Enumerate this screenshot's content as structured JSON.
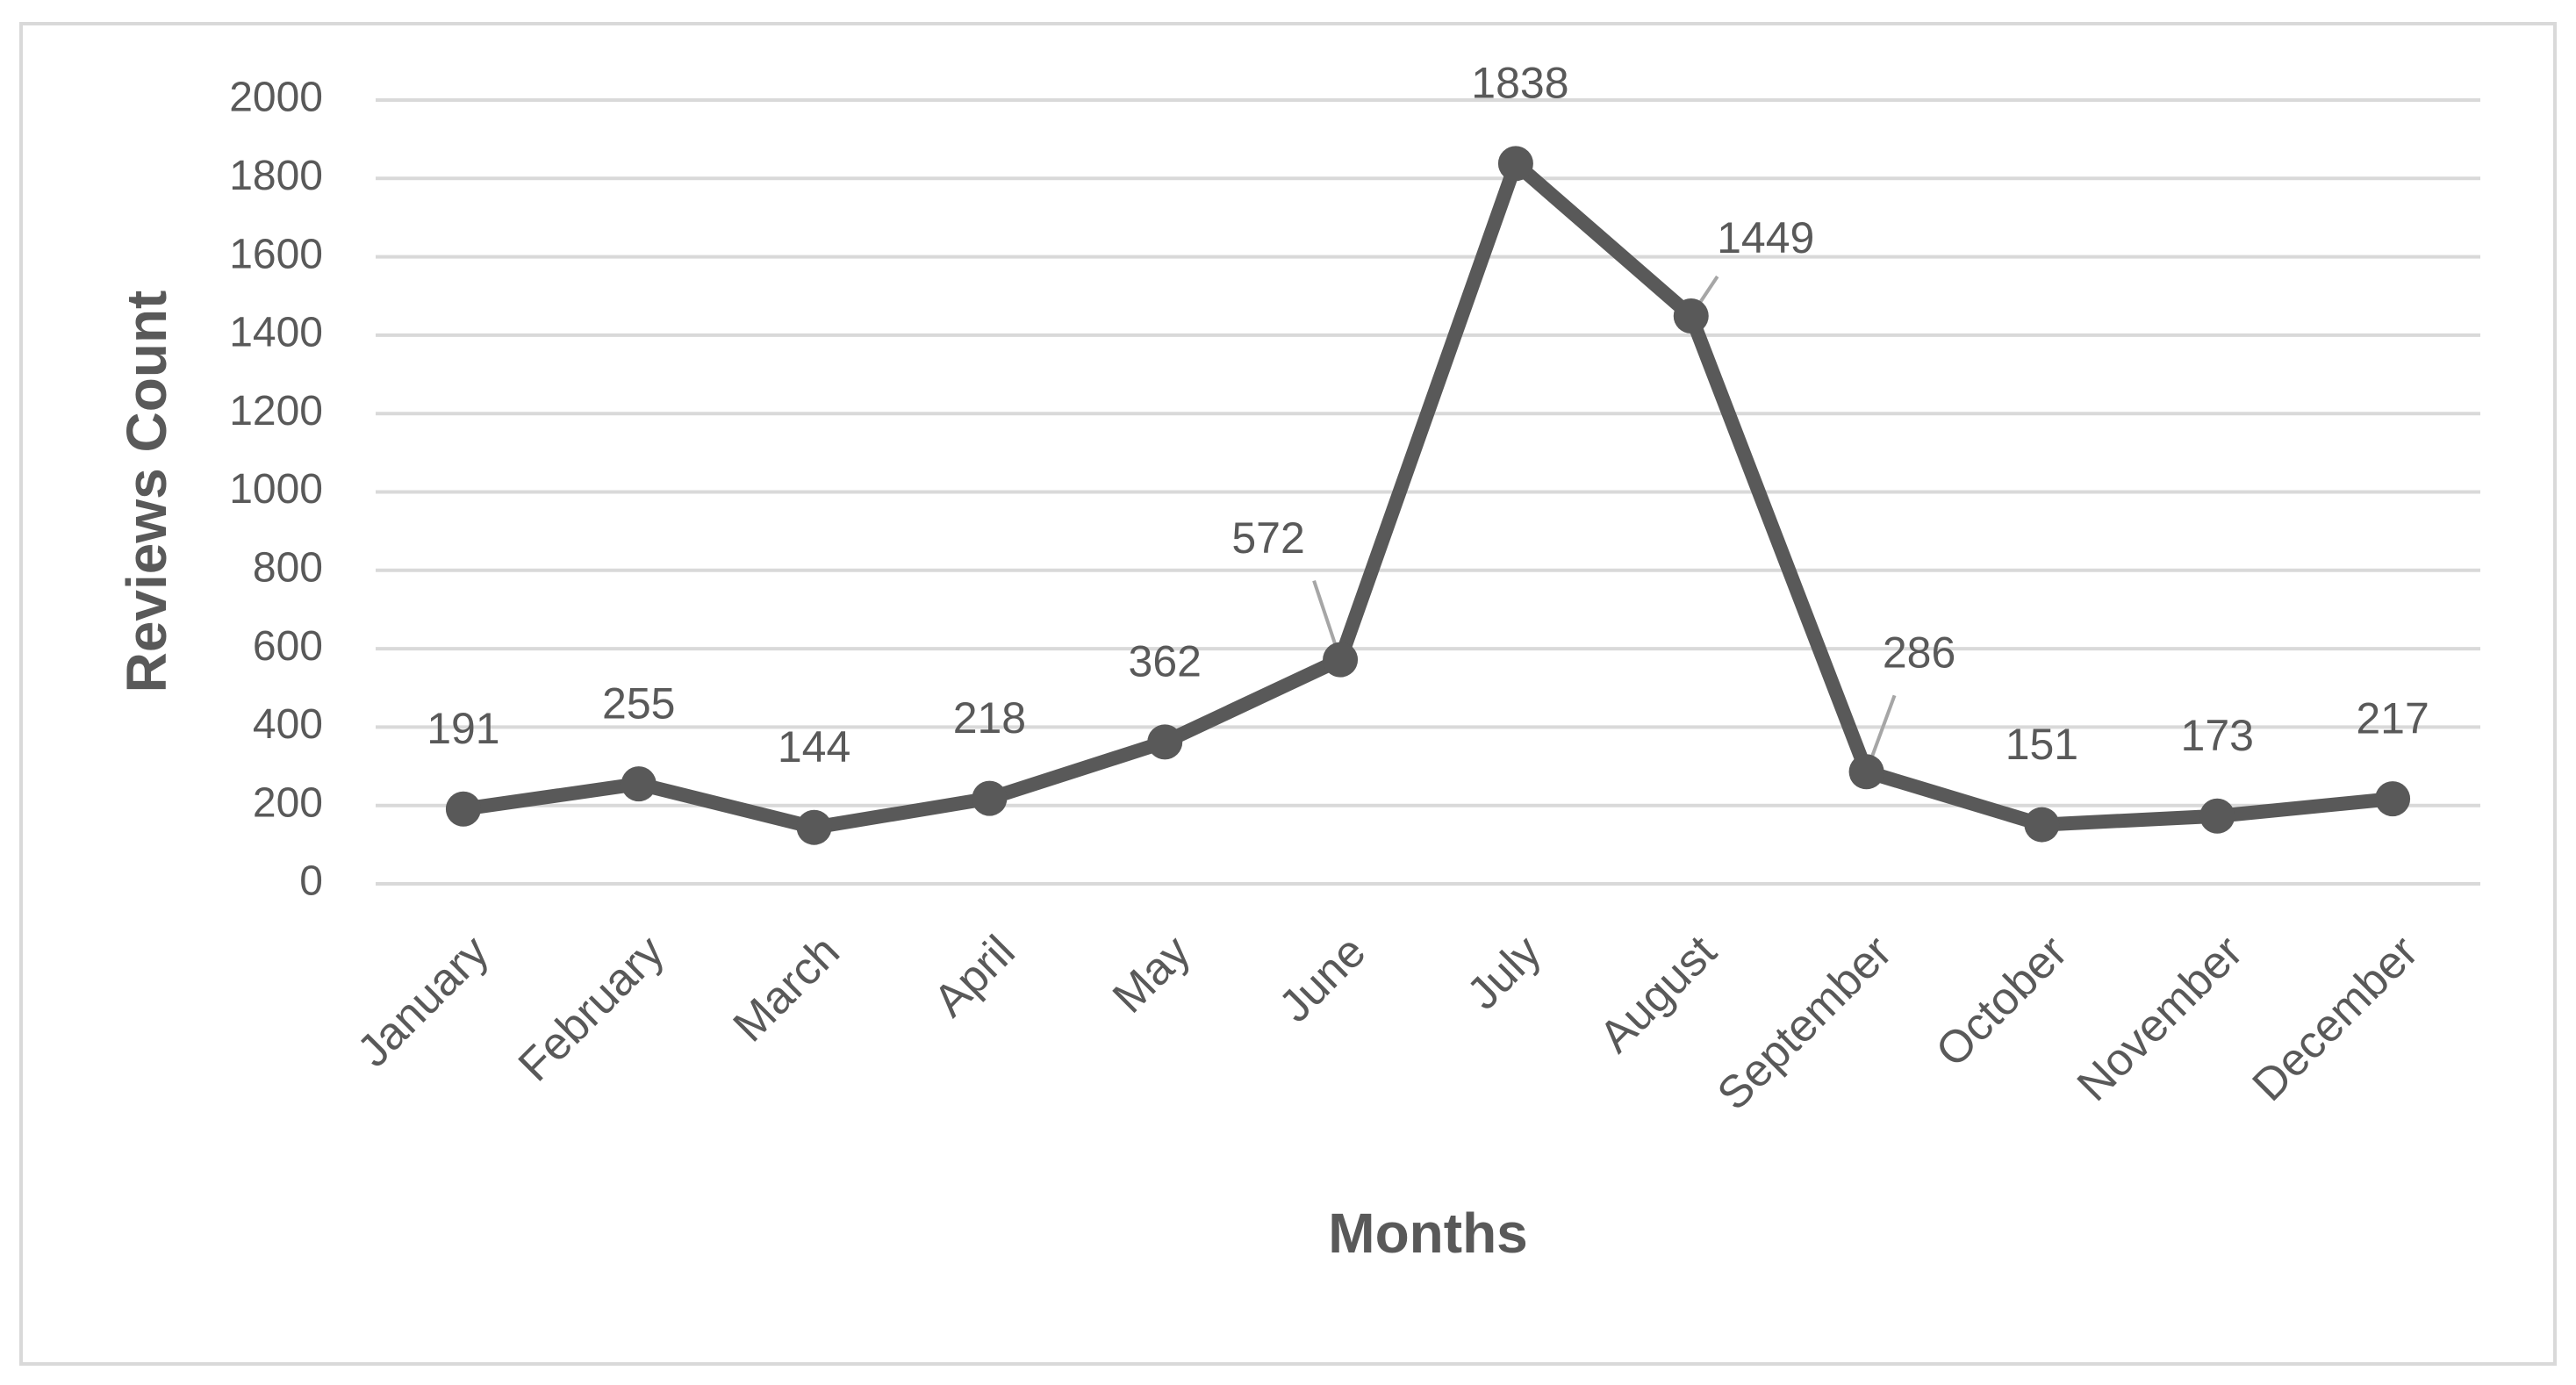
{
  "chart_data": {
    "type": "line",
    "title": "",
    "xlabel": "Months",
    "ylabel": "Reviews Count",
    "categories": [
      "January",
      "February",
      "March",
      "April",
      "May",
      "June",
      "July",
      "August",
      "September",
      "October",
      "November",
      "December"
    ],
    "series": [
      {
        "values": [
          191,
          255,
          144,
          218,
          362,
          572,
          1838,
          1449,
          286,
          151,
          173,
          217
        ]
      }
    ],
    "data_labels": [
      "191",
      "255",
      "144",
      "218",
      "362",
      "572",
      "1838",
      "1449",
      "286",
      "151",
      "173",
      "217"
    ],
    "yticks": [
      "0",
      "200",
      "400",
      "600",
      "800",
      "1000",
      "1200",
      "1400",
      "1600",
      "1800",
      "2000"
    ],
    "ytick_values": [
      0,
      200,
      400,
      600,
      800,
      1000,
      1200,
      1400,
      1600,
      1800,
      2000
    ],
    "ylim": [
      0,
      2000
    ],
    "grid": "horizontal",
    "legend": "none",
    "colors": {
      "line": "#595959",
      "marker": "#595959",
      "grid": "#d9d9d9",
      "text": "#595959",
      "border": "#d9d9d9",
      "leader": "#a6a6a6"
    }
  }
}
